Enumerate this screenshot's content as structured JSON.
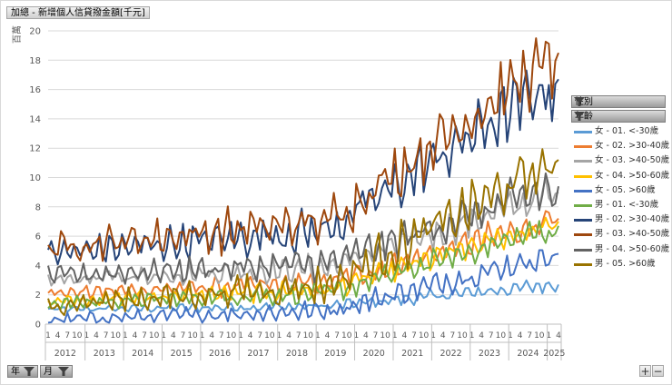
{
  "field_buttons": {
    "value_field": "加總 - 新增個人信貸撥金額[千元]",
    "legend_header_gender": "性別",
    "legend_header_age": "年齡",
    "axis_year": "年",
    "axis_month": "月",
    "plus": "+",
    "minus": "−"
  },
  "colors": {
    "gridline": "#d9d9d9",
    "axis_text": "#595959"
  },
  "chart_data": {
    "type": "line",
    "title": "加總 - 新增個人信貸撥金額[千元]",
    "ylabel": "百萬",
    "xlabel": "",
    "ylim": [
      0,
      20
    ],
    "yticks": [
      "0",
      "2",
      "4",
      "6",
      "8",
      "10",
      "12",
      "14",
      "16",
      "18",
      "20"
    ],
    "month_ticks": [
      "1",
      "4",
      "7",
      "10"
    ],
    "last_year_month_ticks": [
      "1",
      "4"
    ],
    "years": [
      "2012",
      "2013",
      "2014",
      "2015",
      "2016",
      "2017",
      "2018",
      "2019",
      "2020",
      "2021",
      "2022",
      "2023",
      "2024",
      "2025"
    ],
    "grid": true,
    "legend_position": "right",
    "series": [
      {
        "name": "女 - 01. <-30歲",
        "color": "#5b9bd5",
        "start": 1.0,
        "end": 2.7,
        "amp": 0.25
      },
      {
        "name": "女 - 02. >30-40歲",
        "color": "#ed7d31",
        "start": 2.1,
        "end": 7.2,
        "amp": 0.5
      },
      {
        "name": "女 - 03. >40-50歲",
        "color": "#a5a5a5",
        "start": 3.0,
        "end": 9.0,
        "amp": 0.6
      },
      {
        "name": "女 - 04. >50-60歲",
        "color": "#ffc000",
        "start": 1.6,
        "end": 7.0,
        "amp": 0.45
      },
      {
        "name": "女 - 05. >60歲",
        "color": "#4472c4",
        "start": 0.3,
        "end": 4.8,
        "amp": 0.45
      },
      {
        "name": "男 - 01. <-30歲",
        "color": "#70ad47",
        "start": 1.4,
        "end": 6.7,
        "amp": 0.45
      },
      {
        "name": "男 - 02. >30-40歲",
        "color": "#264478",
        "start": 4.8,
        "end": 16.7,
        "amp": 1.0
      },
      {
        "name": "男 - 03. >40-50歲",
        "color": "#9e480e",
        "start": 5.2,
        "end": 18.5,
        "amp": 1.1
      },
      {
        "name": "男 - 04. >50-60歲",
        "color": "#636363",
        "start": 3.3,
        "end": 9.4,
        "amp": 0.7
      },
      {
        "name": "男 - 05. >60歲",
        "color": "#997300",
        "start": 1.3,
        "end": 11.2,
        "amp": 0.9
      }
    ]
  }
}
